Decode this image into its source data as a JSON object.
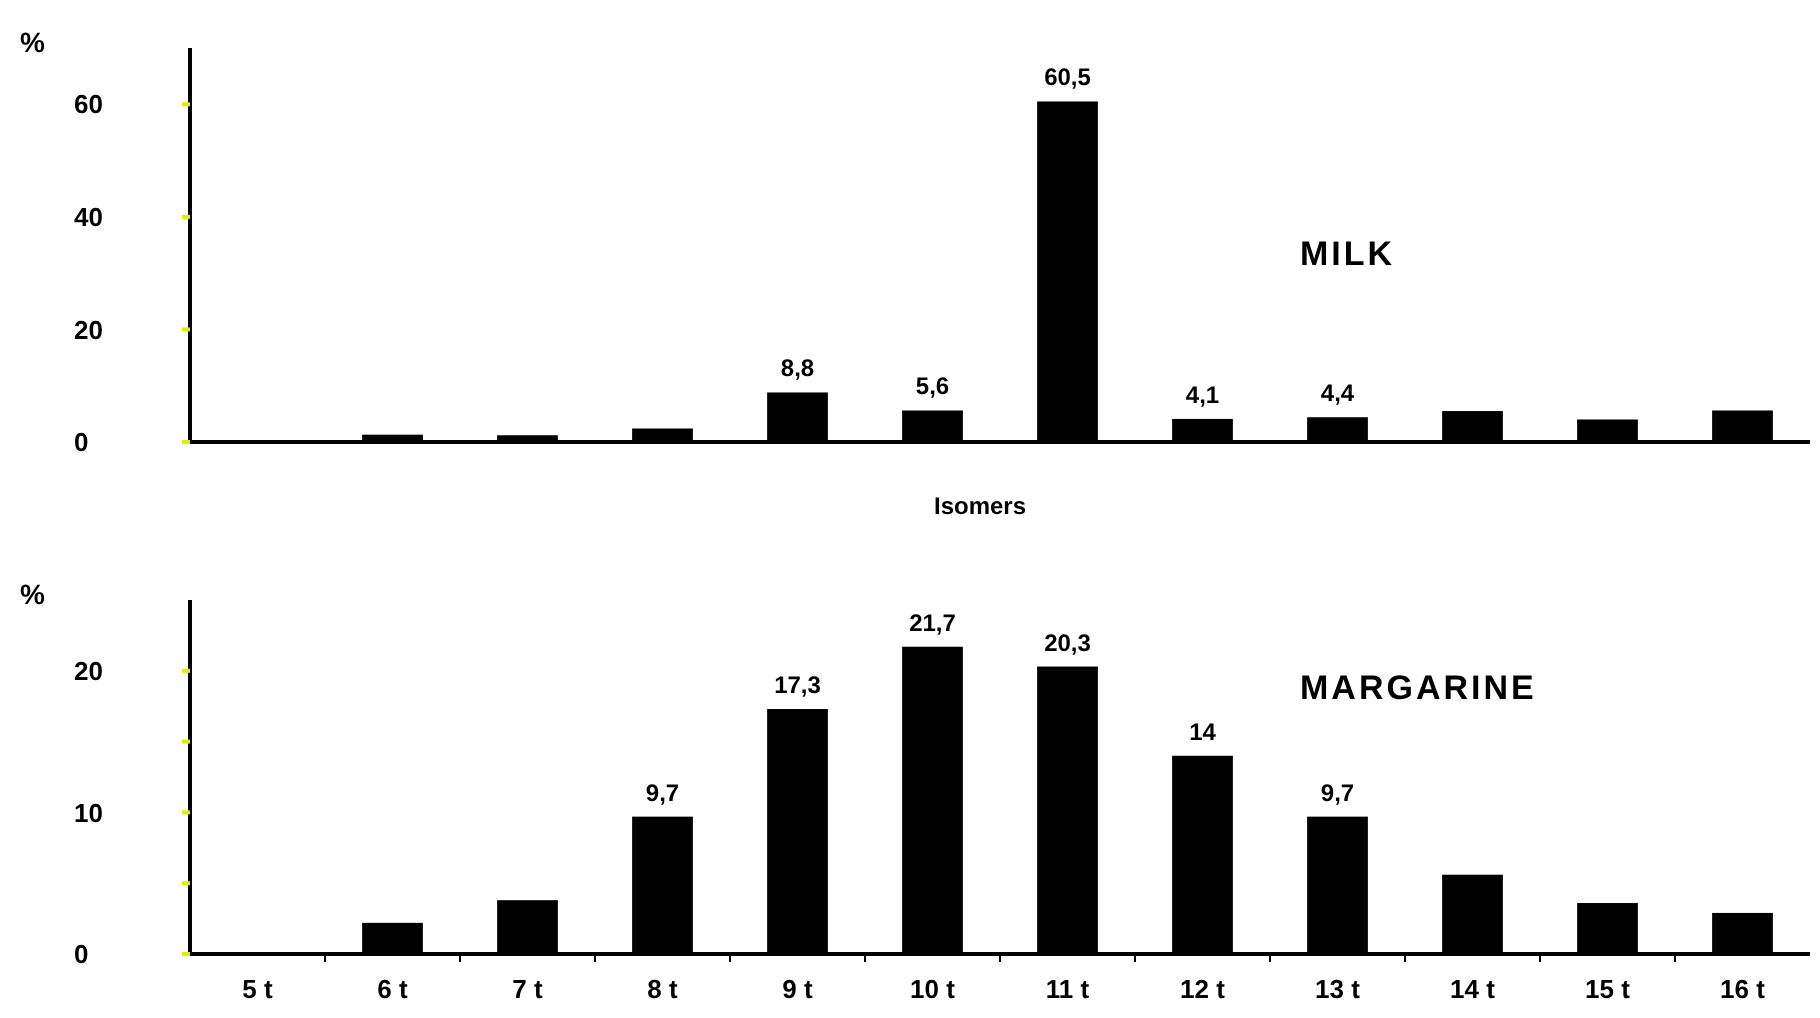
{
  "chart_data": [
    {
      "type": "bar",
      "title": "MILK",
      "ylabel": "%",
      "xlabel": "Isomers",
      "categories": [
        null,
        null,
        null,
        null,
        null,
        null,
        null,
        null,
        null,
        null,
        null,
        null
      ],
      "values": [
        0,
        1.3,
        1.2,
        2.4,
        8.8,
        5.6,
        60.5,
        4.1,
        4.4,
        5.5,
        4.0,
        5.6
      ],
      "color": "#000000",
      "value_labels": [
        null,
        null,
        null,
        null,
        "8,8",
        "5,6",
        "60,5",
        "4,1",
        "4,4",
        null,
        null,
        null
      ],
      "ylim": [
        0,
        70
      ],
      "yticks": [
        0,
        20,
        40,
        60
      ],
      "tick_labels": "y",
      "grid": false
    },
    {
      "type": "bar",
      "title": "MARGARINE",
      "ylabel": "%",
      "categories": [
        "5 t",
        "6 t",
        "7 t",
        "8 t",
        "9 t",
        "10 t",
        "11 t",
        "12 t",
        "13 t",
        "14 t",
        "15 t",
        "16 t"
      ],
      "values": [
        0,
        2.2,
        3.8,
        9.7,
        17.3,
        21.7,
        20.3,
        14,
        9.7,
        5.6,
        3.6,
        2.9
      ],
      "color": "#000000",
      "value_labels": [
        null,
        null,
        null,
        "9,7",
        "17,3",
        "21,7",
        "20,3",
        "14",
        "9,7",
        null,
        null,
        null
      ],
      "ylim": [
        0,
        25
      ],
      "yticks": [
        0,
        {
          "value": 5,
          "label": null
        },
        10,
        {
          "value": 15,
          "label": null
        },
        20
      ],
      "grid": false
    }
  ]
}
